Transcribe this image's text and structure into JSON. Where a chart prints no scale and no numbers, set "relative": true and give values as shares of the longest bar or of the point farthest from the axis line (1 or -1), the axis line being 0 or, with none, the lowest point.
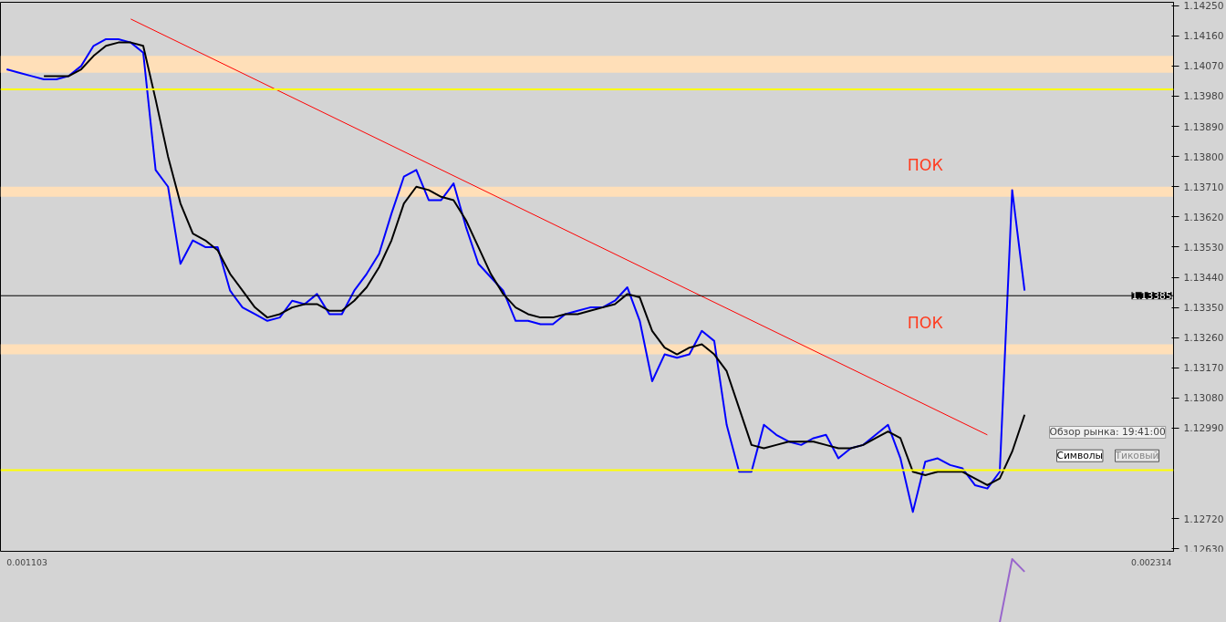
{
  "chart_data": [
    {
      "type": "line",
      "categories": [
        null,
        null,
        null,
        null,
        null,
        null,
        null,
        null,
        null,
        null,
        null,
        null,
        null,
        null,
        null,
        null,
        null,
        null,
        null,
        null,
        null,
        null,
        null,
        null,
        null,
        null,
        null,
        null,
        null,
        null,
        null,
        null,
        null,
        null,
        null,
        null,
        null,
        null,
        null,
        null,
        null,
        null,
        null,
        null,
        null,
        null,
        null,
        null,
        null,
        null,
        null,
        null,
        null,
        null,
        null,
        null,
        null,
        null,
        null,
        null,
        null,
        null,
        null,
        null,
        null,
        null,
        null,
        null,
        null,
        null,
        null,
        null,
        null,
        null,
        null,
        null,
        null,
        null,
        null,
        null,
        null,
        null,
        null
      ],
      "series": [
        {
          "color": "#0000ff",
          "values": [
            1.1406,
            1.1405,
            1.1404,
            1.1403,
            1.1403,
            1.1404,
            1.1407,
            1.1413,
            1.1415,
            1.1415,
            1.1414,
            1.1411,
            1.1376,
            1.1371,
            1.1348,
            1.1355,
            1.1353,
            1.1353,
            1.134,
            1.1335,
            1.1333,
            1.1331,
            1.1332,
            1.1337,
            1.1336,
            1.1339,
            1.1333,
            1.1333,
            1.134,
            1.1345,
            1.1351,
            1.1363,
            1.1374,
            1.1376,
            1.1367,
            1.1367,
            1.1372,
            1.1359,
            1.1348,
            1.1344,
            1.134,
            1.1331,
            1.1331,
            1.133,
            1.133,
            1.1333,
            1.1334,
            1.1335,
            1.1335,
            1.1337,
            1.1341,
            1.1331,
            1.1313,
            1.1321,
            1.132,
            1.1321,
            1.1328,
            1.1325,
            1.13,
            1.1286,
            1.1286,
            1.13,
            1.1297,
            1.1295,
            1.1294,
            1.1296,
            1.1297,
            1.129,
            1.1293,
            1.1294,
            1.1297,
            1.13,
            1.129,
            1.1274,
            1.1289,
            1.129,
            1.1288,
            1.1287,
            1.1282,
            1.1281,
            1.1286,
            1.137,
            1.134
          ]
        },
        {
          "color": "#000000",
          "values": [
            null,
            null,
            null,
            1.1404,
            1.1404,
            1.1404,
            1.1406,
            1.141,
            1.1413,
            1.1414,
            1.1414,
            1.1413,
            1.1397,
            1.138,
            1.1366,
            1.1357,
            1.1355,
            1.1352,
            1.1345,
            1.134,
            1.1335,
            1.1332,
            1.1333,
            1.1335,
            1.1336,
            1.1336,
            1.1334,
            1.1334,
            1.1337,
            1.1341,
            1.1347,
            1.1355,
            1.1366,
            1.1371,
            1.137,
            1.1368,
            1.1367,
            1.1361,
            1.1353,
            1.1345,
            1.1339,
            1.1335,
            1.1333,
            1.1332,
            1.1332,
            1.1333,
            1.1333,
            1.1334,
            1.1335,
            1.1336,
            1.1339,
            1.1338,
            1.1328,
            1.1323,
            1.1321,
            1.1323,
            1.1324,
            1.1321,
            1.1316,
            1.1305,
            1.1294,
            1.1293,
            1.1294,
            1.1295,
            1.1295,
            1.1295,
            1.1294,
            1.1293,
            1.1293,
            1.1294,
            1.1296,
            1.1298,
            1.1296,
            1.1286,
            1.1285,
            1.1286,
            1.1286,
            1.1286,
            1.1284,
            1.1282,
            1.1284,
            1.1292,
            1.1303
          ]
        },
        {
          "color": "#ff0000",
          "values": [
            null,
            null,
            null,
            null,
            null,
            null,
            null,
            null,
            null,
            null,
            1.1421,
            null,
            null,
            null,
            null,
            null,
            null,
            null,
            null,
            null,
            null,
            null,
            null,
            null,
            null,
            null,
            null,
            null,
            null,
            null,
            null,
            null,
            null,
            null,
            null,
            null,
            null,
            null,
            null,
            null,
            null,
            null,
            null,
            null,
            null,
            null,
            null,
            null,
            null,
            null,
            null,
            null,
            null,
            null,
            null,
            null,
            null,
            null,
            null,
            null,
            null,
            null,
            null,
            null,
            null,
            null,
            null,
            null,
            null,
            null,
            null,
            null,
            null,
            null,
            null,
            null,
            null,
            null,
            null,
            1.1297,
            null,
            null,
            null
          ]
        }
      ],
      "ylim": [
        1.1262,
        1.1426
      ],
      "yticks": [
        {
          "value": 1.1425,
          "label": "1.14250"
        },
        {
          "value": 1.1416,
          "label": "1.14160"
        },
        {
          "value": 1.1407,
          "label": "1.14070"
        },
        {
          "value": 1.1398,
          "label": "1.13980"
        },
        {
          "value": 1.1389,
          "label": "1.13890"
        },
        {
          "value": 1.138,
          "label": "1.13800"
        },
        {
          "value": 1.1371,
          "label": "1.13710"
        },
        {
          "value": 1.1362,
          "label": "1.13620"
        },
        {
          "value": 1.1353,
          "label": "1.13530"
        },
        {
          "value": 1.1344,
          "label": "1.13440"
        },
        {
          "value": 1.1335,
          "label": "1.13350"
        },
        {
          "value": 1.1326,
          "label": "1.13260"
        },
        {
          "value": 1.1317,
          "label": "1.13170"
        },
        {
          "value": 1.1308,
          "label": "1.13080"
        },
        {
          "value": 1.1299,
          "label": "1.12990"
        },
        {
          "value": 1.1272,
          "label": "1.12720"
        },
        {
          "value": 1.1263,
          "label": "1.12630"
        }
      ],
      "tick_labels": "y",
      "bands": [
        {
          "axis": "y",
          "from": 1.1405,
          "to": 1.141,
          "color": "#ffdfb8"
        },
        {
          "axis": "y",
          "from": 1.1368,
          "to": 1.1371,
          "label": "ПОК",
          "color": "#ffdfb8"
        },
        {
          "axis": "y",
          "from": 1.1321,
          "to": 1.1324,
          "label": "ПОК",
          "color": "#ffdfb8"
        }
      ],
      "ref_lines": [
        {
          "axis": "y",
          "value": 1.13385,
          "label": "1.13385",
          "color": "#000000"
        },
        {
          "axis": "y",
          "value": 1.14,
          "color": "#ffff00"
        },
        {
          "axis": "y",
          "value": 1.12865,
          "color": "#ffff00"
        }
      ],
      "annotations": [
        "Обзор рынка: 19:41:00",
        "Символы",
        "Тиковый"
      ]
    },
    {
      "type": "line",
      "relative": true,
      "tick_labels": false,
      "categories": [
        null,
        null,
        null,
        null,
        null,
        null,
        null,
        null,
        null,
        null,
        null,
        null,
        null,
        null,
        null,
        null,
        null,
        null,
        null,
        null,
        null,
        null,
        null,
        null,
        null,
        null,
        null,
        null,
        null,
        null,
        null,
        null,
        null,
        null,
        null,
        null,
        null,
        null,
        null,
        null,
        null,
        null,
        null,
        null,
        null,
        null,
        null,
        null,
        null,
        null,
        null,
        null,
        null,
        null,
        null,
        null,
        null,
        null,
        null,
        null,
        null,
        null,
        null,
        null,
        null,
        null,
        null,
        null,
        null,
        null,
        null,
        null,
        null,
        null,
        null,
        null,
        null,
        null,
        null,
        null,
        null,
        null,
        null
      ],
      "series": [
        {
          "color": "#9966cc",
          "values": [
            null,
            null,
            null,
            null,
            null,
            null,
            null,
            null,
            null,
            null,
            null,
            null,
            null,
            null,
            null,
            null,
            null,
            null,
            null,
            null,
            null,
            null,
            null,
            null,
            null,
            null,
            null,
            null,
            null,
            null,
            null,
            null,
            null,
            null,
            null,
            null,
            null,
            null,
            null,
            null,
            null,
            null,
            null,
            null,
            null,
            null,
            null,
            null,
            null,
            null,
            null,
            null,
            null,
            null,
            null,
            null,
            null,
            null,
            null,
            null,
            null,
            null,
            null,
            null,
            null,
            null,
            null,
            null,
            null,
            null,
            null,
            null,
            null,
            null,
            null,
            null,
            null,
            null,
            null,
            null,
            0,
            1,
            0.8
          ]
        }
      ],
      "annotations": [
        "0.001103",
        "0.002314"
      ]
    }
  ]
}
